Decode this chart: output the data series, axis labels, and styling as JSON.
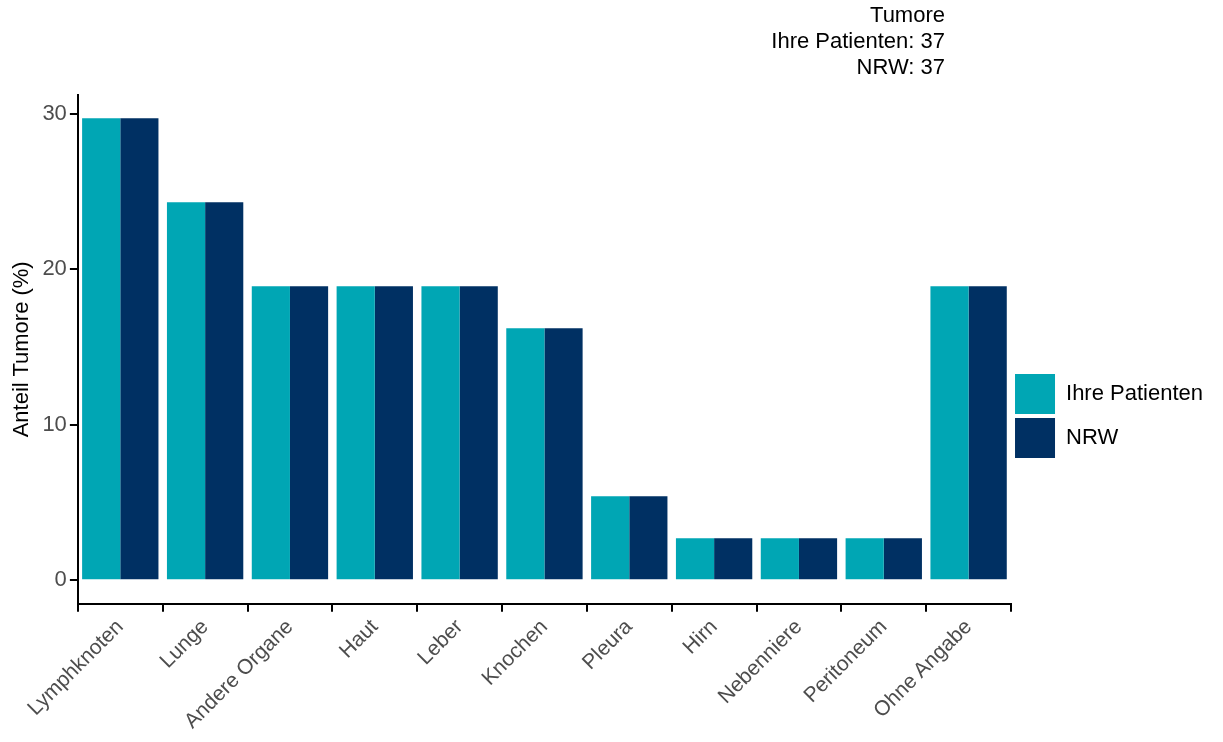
{
  "chart_data": {
    "type": "bar",
    "ylabel": "Anteil Tumore (%)",
    "annotations": [
      "Tumore",
      "Ihre Patienten: 37",
      "NRW: 37"
    ],
    "categories": [
      "Lymphknoten",
      "Lunge",
      "Andere Organe",
      "Haut",
      "Leber",
      "Knochen",
      "Pleura",
      "Hirn",
      "Nebenniere",
      "Peritoneum",
      "Ohne Angabe"
    ],
    "series": [
      {
        "name": "Ihre Patienten",
        "color": "#00a6b4",
        "values": [
          29.7,
          24.3,
          18.9,
          18.9,
          18.9,
          16.2,
          5.4,
          2.7,
          2.7,
          2.7,
          18.9
        ]
      },
      {
        "name": "NRW",
        "color": "#003063",
        "values": [
          29.7,
          24.3,
          18.9,
          18.9,
          18.9,
          16.2,
          5.4,
          2.7,
          2.7,
          2.7,
          18.9
        ]
      }
    ],
    "ylim": [
      -1.5,
      31.2
    ],
    "yticks": [
      0,
      10,
      20,
      30
    ],
    "grid": false,
    "legend": "right"
  }
}
